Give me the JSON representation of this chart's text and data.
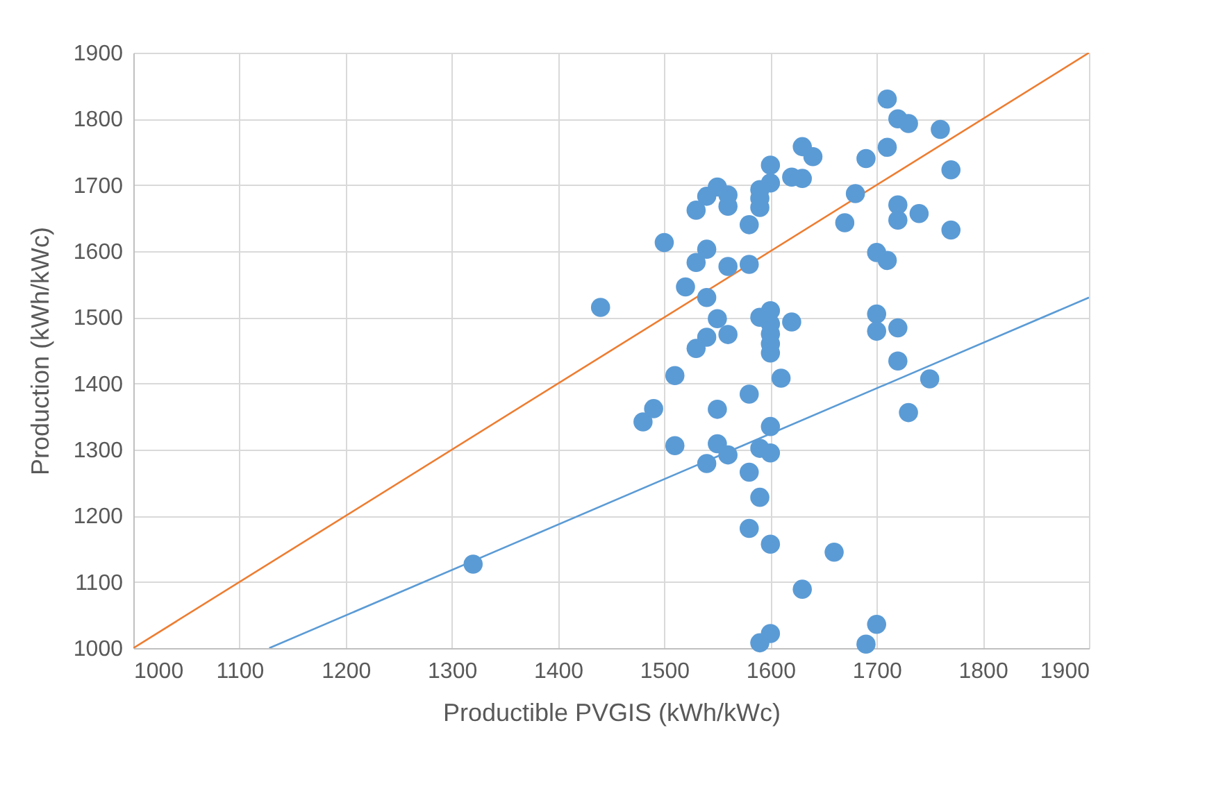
{
  "chart_data": {
    "type": "scatter",
    "xlabel": "Productible PVGIS (kWh/kWc)",
    "ylabel": "Production (kWh/kWc)",
    "xlim": [
      1000,
      1900
    ],
    "xticks": [
      1000,
      1100,
      1200,
      1300,
      1400,
      1500,
      1600,
      1700,
      1800,
      1900
    ],
    "ylim": [
      1000,
      1900
    ],
    "yticks": [
      1000,
      1100,
      1200,
      1300,
      1400,
      1500,
      1600,
      1700,
      1800,
      1900
    ],
    "grid": true,
    "series": [
      {
        "type": "line",
        "color": "#ed7d31",
        "x": [
          1000,
          1900
        ],
        "values": [
          1000,
          1900
        ]
      },
      {
        "type": "line",
        "color": "#5b9bd5",
        "x": [
          1128,
          1900
        ],
        "values": [
          1000,
          1530
        ]
      },
      {
        "marker": "circle",
        "color": "#5b9bd5",
        "x": [
          1320,
          1440,
          1480,
          1490,
          1500,
          1510,
          1510,
          1520,
          1530,
          1530,
          1530,
          1540,
          1540,
          1540,
          1540,
          1540,
          1550,
          1550,
          1550,
          1550,
          1560,
          1560,
          1560,
          1560,
          1560,
          1580,
          1580,
          1580,
          1580,
          1580,
          1590,
          1590,
          1590,
          1590,
          1590,
          1590,
          1590,
          1600,
          1600,
          1600,
          1600,
          1600,
          1600,
          1600,
          1600,
          1600,
          1600,
          1600,
          1610,
          1620,
          1620,
          1630,
          1630,
          1630,
          1640,
          1660,
          1670,
          1680,
          1690,
          1690,
          1700,
          1700,
          1700,
          1700,
          1710,
          1710,
          1710,
          1720,
          1720,
          1720,
          1720,
          1720,
          1730,
          1730,
          1740,
          1750,
          1760,
          1770,
          1770
        ],
        "values": [
          1127,
          1515,
          1342,
          1362,
          1613,
          1412,
          1306,
          1546,
          1583,
          1662,
          1453,
          1683,
          1603,
          1530,
          1470,
          1279,
          1697,
          1498,
          1361,
          1309,
          1685,
          1668,
          1577,
          1474,
          1292,
          1640,
          1580,
          1384,
          1266,
          1181,
          1693,
          1680,
          1666,
          1500,
          1302,
          1228,
          1008,
          1730,
          1703,
          1510,
          1490,
          1475,
          1460,
          1446,
          1335,
          1295,
          1157,
          1022,
          1408,
          1712,
          1493,
          1758,
          1710,
          1089,
          1743,
          1145,
          1643,
          1687,
          1740,
          1006,
          1598,
          1505,
          1479,
          1036,
          1830,
          1757,
          1586,
          1800,
          1670,
          1647,
          1484,
          1434,
          1793,
          1356,
          1657,
          1407,
          1784,
          1723,
          1632
        ]
      }
    ]
  }
}
